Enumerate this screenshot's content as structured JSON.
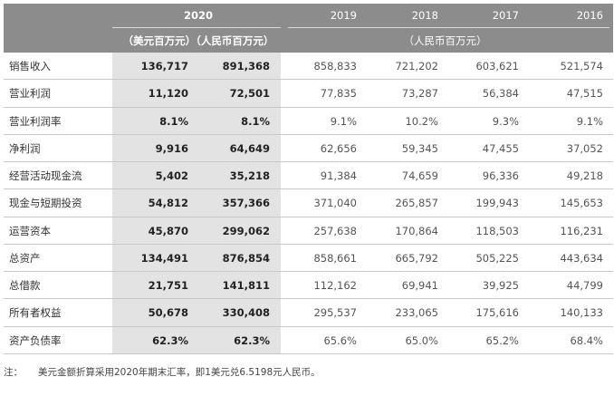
{
  "header": {
    "year_main": "2020",
    "years": [
      "2019",
      "2018",
      "2017",
      "2016"
    ],
    "unit_2020": "（美元百万元）（人民币百万元）",
    "unit_rmb": "（人民币百万元）"
  },
  "rows": [
    {
      "label": "销售收入",
      "usd": "136,717",
      "rmb": "891,368",
      "y2019": "858,833",
      "y2018": "721,202",
      "y2017": "603,621",
      "y2016": "521,574"
    },
    {
      "label": "营业利润",
      "usd": "11,120",
      "rmb": "72,501",
      "y2019": "77,835",
      "y2018": "73,287",
      "y2017": "56,384",
      "y2016": "47,515"
    },
    {
      "label": "营业利润率",
      "usd": "8.1%",
      "rmb": "8.1%",
      "y2019": "9.1%",
      "y2018": "10.2%",
      "y2017": "9.3%",
      "y2016": "9.1%"
    },
    {
      "label": "净利润",
      "usd": "9,916",
      "rmb": "64,649",
      "y2019": "62,656",
      "y2018": "59,345",
      "y2017": "47,455",
      "y2016": "37,052"
    },
    {
      "label": "经营活动现金流",
      "usd": "5,402",
      "rmb": "35,218",
      "y2019": "91,384",
      "y2018": "74,659",
      "y2017": "96,336",
      "y2016": "49,218"
    },
    {
      "label": "现金与短期投资",
      "usd": "54,812",
      "rmb": "357,366",
      "y2019": "371,040",
      "y2018": "265,857",
      "y2017": "199,943",
      "y2016": "145,653"
    },
    {
      "label": "运营资本",
      "usd": "45,870",
      "rmb": "299,062",
      "y2019": "257,638",
      "y2018": "170,864",
      "y2017": "118,503",
      "y2016": "116,231"
    },
    {
      "label": "总资产",
      "usd": "134,491",
      "rmb": "876,854",
      "y2019": "858,661",
      "y2018": "665,792",
      "y2017": "505,225",
      "y2016": "443,634"
    },
    {
      "label": "总借款",
      "usd": "21,751",
      "rmb": "141,811",
      "y2019": "112,162",
      "y2018": "69,941",
      "y2017": "39,925",
      "y2016": "44,799"
    },
    {
      "label": "所有者权益",
      "usd": "50,678",
      "rmb": "330,408",
      "y2019": "295,537",
      "y2018": "233,065",
      "y2017": "175,616",
      "y2016": "140,133"
    },
    {
      "label": "资产负债率",
      "usd": "62.3%",
      "rmb": "62.3%",
      "y2019": "65.6%",
      "y2018": "65.0%",
      "y2017": "65.2%",
      "y2016": "68.4%"
    }
  ],
  "note": {
    "prefix": "注：",
    "text": "美元金额折算采用2020年期末汇率，即1美元兑6.5198元人民币。"
  },
  "colors": {
    "header_bg": "#8c8c8c",
    "highlight_col_bg": "#e3e3e3"
  }
}
